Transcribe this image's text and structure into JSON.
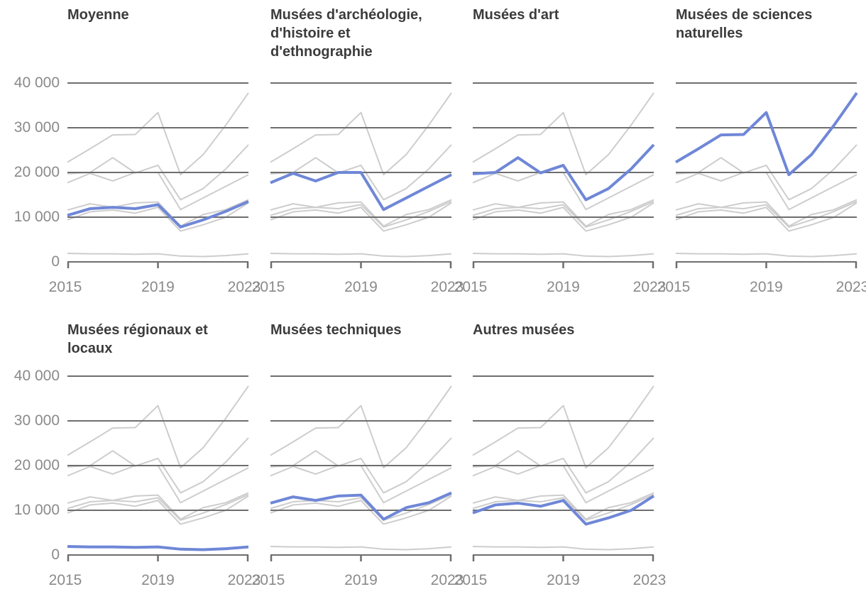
{
  "chart_data": {
    "type": "line",
    "layout": "small-multiples",
    "title": "",
    "xlabel": "",
    "ylabel": "",
    "x": [
      2015,
      2016,
      2017,
      2018,
      2019,
      2020,
      2021,
      2022,
      2023
    ],
    "x_ticks": [
      "2015",
      "2019",
      "2023"
    ],
    "y_ticks": [
      {
        "value": 40000,
        "label": "40 000"
      },
      {
        "value": 30000,
        "label": "30 000"
      },
      {
        "value": 20000,
        "label": "20 000"
      },
      {
        "value": 10000,
        "label": "10 000"
      },
      {
        "value": 0,
        "label": "0"
      }
    ],
    "ylim": [
      0,
      40000
    ],
    "grid": "horizontal-only",
    "legend": "none",
    "colors": {
      "highlight": "#6f87d7",
      "other_series": "#cdcdcd",
      "grid": "#6e6e6e",
      "title_text": "#3c3c3c",
      "tick_text": "#8a8a8a"
    },
    "panels": [
      {
        "title": "Moyenne",
        "highlight": "moyenne"
      },
      {
        "title": "Musées d'archéologie, d'histoire et d'ethnographie",
        "highlight": "archeologie"
      },
      {
        "title": "Musées d'art",
        "highlight": "art"
      },
      {
        "title": "Musées de sciences naturelles",
        "highlight": "sciences"
      },
      {
        "title": "Musées régionaux et locaux",
        "highlight": "regionaux"
      },
      {
        "title": "Musées techniques",
        "highlight": "techniques"
      },
      {
        "title": "Autres musées",
        "highlight": "autres"
      }
    ],
    "series": [
      {
        "id": "moyenne",
        "name": "Moyenne",
        "values": [
          10400,
          11900,
          12200,
          11900,
          12800,
          7800,
          9400,
          11300,
          13500
        ]
      },
      {
        "id": "archeologie",
        "name": "Musées d'archéologie, d'histoire et d'ethnographie",
        "values": [
          17700,
          19800,
          18100,
          20000,
          20000,
          11700,
          14300,
          16900,
          19500
        ]
      },
      {
        "id": "art",
        "name": "Musées d'art",
        "values": [
          19700,
          20000,
          23300,
          19900,
          21600,
          13900,
          16400,
          20800,
          26200
        ]
      },
      {
        "id": "sciences",
        "name": "Musées de sciences naturelles",
        "values": [
          22300,
          25300,
          28400,
          28500,
          33400,
          19500,
          24000,
          30600,
          37800
        ]
      },
      {
        "id": "regionaux",
        "name": "Musées régionaux et locaux",
        "values": [
          1900,
          1800,
          1800,
          1700,
          1800,
          1300,
          1200,
          1400,
          1800
        ]
      },
      {
        "id": "techniques",
        "name": "Musées techniques",
        "values": [
          11600,
          13000,
          12200,
          13200,
          13400,
          8000,
          10600,
          11700,
          13900
        ]
      },
      {
        "id": "autres",
        "name": "Autres musées",
        "values": [
          9400,
          11200,
          11600,
          10900,
          12200,
          6900,
          8300,
          10000,
          13200
        ]
      }
    ]
  }
}
